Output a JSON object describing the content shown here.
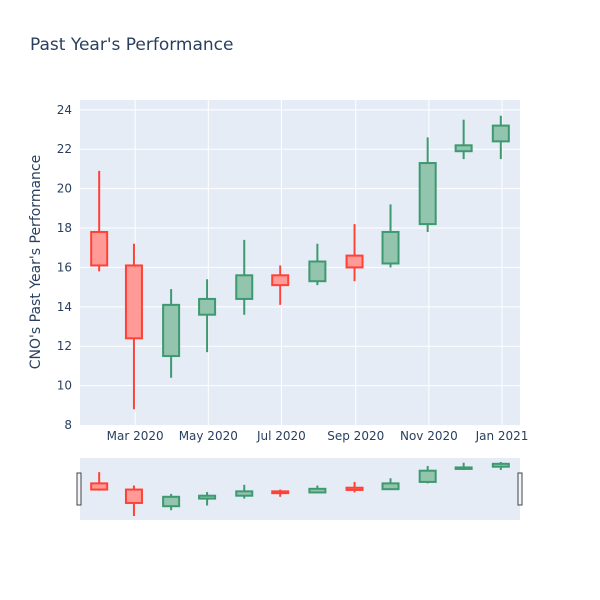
{
  "chart_data": {
    "type": "candlestick",
    "title": "Past Year's Performance",
    "xlabel": "",
    "ylabel": "CNO's Past Year's Performance",
    "ylim": [
      8,
      24.5
    ],
    "y_ticks": [
      8,
      10,
      12,
      14,
      16,
      18,
      20,
      22,
      24
    ],
    "x_ticks": [
      {
        "date": "2020-03-01",
        "label": "Mar 2020"
      },
      {
        "date": "2020-05-01",
        "label": "May 2020"
      },
      {
        "date": "2020-07-01",
        "label": "Jul 2020"
      },
      {
        "date": "2020-09-01",
        "label": "Sep 2020"
      },
      {
        "date": "2020-11-01",
        "label": "Nov 2020"
      },
      {
        "date": "2021-01-01",
        "label": "Jan 2021"
      }
    ],
    "x_range": [
      "2020-01-15",
      "2021-01-16"
    ],
    "grid": true,
    "rangeslider": true,
    "colors": {
      "increasing_line": "#3d9970",
      "increasing_fill": "#93c4ad",
      "decreasing_line": "#ff4136",
      "decreasing_fill": "#ff9a96",
      "plot_bg": "#e5ecf6",
      "grid": "#ffffff",
      "text": "#2a3f5f"
    },
    "candles": [
      {
        "date": "2020-01-31",
        "open": 17.8,
        "high": 20.9,
        "low": 15.8,
        "close": 16.1
      },
      {
        "date": "2020-02-29",
        "open": 16.1,
        "high": 17.2,
        "low": 8.8,
        "close": 12.4
      },
      {
        "date": "2020-03-31",
        "open": 11.5,
        "high": 14.9,
        "low": 10.4,
        "close": 14.1
      },
      {
        "date": "2020-04-30",
        "open": 13.6,
        "high": 15.4,
        "low": 11.7,
        "close": 14.4
      },
      {
        "date": "2020-05-31",
        "open": 14.4,
        "high": 17.4,
        "low": 13.6,
        "close": 15.6
      },
      {
        "date": "2020-06-30",
        "open": 15.6,
        "high": 16.1,
        "low": 14.1,
        "close": 15.1
      },
      {
        "date": "2020-07-31",
        "open": 15.3,
        "high": 17.2,
        "low": 15.1,
        "close": 16.3
      },
      {
        "date": "2020-08-31",
        "open": 16.6,
        "high": 18.2,
        "low": 15.3,
        "close": 16.0
      },
      {
        "date": "2020-09-30",
        "open": 16.2,
        "high": 19.2,
        "low": 16.0,
        "close": 17.8
      },
      {
        "date": "2020-10-31",
        "open": 18.2,
        "high": 22.6,
        "low": 17.8,
        "close": 21.3
      },
      {
        "date": "2020-11-30",
        "open": 21.9,
        "high": 23.5,
        "low": 21.5,
        "close": 22.2
      },
      {
        "date": "2020-12-31",
        "open": 22.4,
        "high": 23.7,
        "low": 21.5,
        "close": 23.2
      }
    ]
  }
}
